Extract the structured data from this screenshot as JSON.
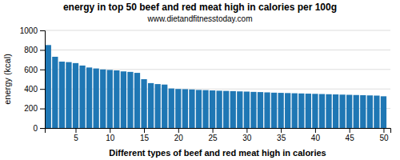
{
  "chart_data": {
    "type": "bar",
    "title": "energy in top 50 beef and red meat high in calories per 100g",
    "subtitle": "www.dietandfitnesstoday.com",
    "xlabel": "Different types of beef and red meat high in calories",
    "ylabel": "energy (kcal)",
    "x": [
      1,
      2,
      3,
      4,
      5,
      6,
      7,
      8,
      9,
      10,
      11,
      12,
      13,
      14,
      15,
      16,
      17,
      18,
      19,
      20,
      21,
      22,
      23,
      24,
      25,
      26,
      27,
      28,
      29,
      30,
      31,
      32,
      33,
      34,
      35,
      36,
      37,
      38,
      39,
      40,
      41,
      42,
      43,
      44,
      45,
      46,
      47,
      48,
      49,
      50
    ],
    "values": [
      850,
      730,
      680,
      675,
      665,
      640,
      620,
      610,
      600,
      595,
      590,
      580,
      575,
      565,
      500,
      460,
      450,
      445,
      405,
      400,
      398,
      395,
      390,
      388,
      385,
      382,
      380,
      378,
      375,
      373,
      370,
      368,
      365,
      362,
      360,
      358,
      356,
      354,
      352,
      350,
      348,
      346,
      344,
      342,
      340,
      338,
      336,
      334,
      332,
      325
    ],
    "xlim": [
      0.5,
      51
    ],
    "xticks": [
      5,
      10,
      15,
      20,
      25,
      30,
      35,
      40,
      45,
      50
    ],
    "ylim": [
      0,
      1000
    ],
    "yticks": [
      0,
      200,
      400,
      600,
      800,
      1000
    ],
    "grid": true
  }
}
